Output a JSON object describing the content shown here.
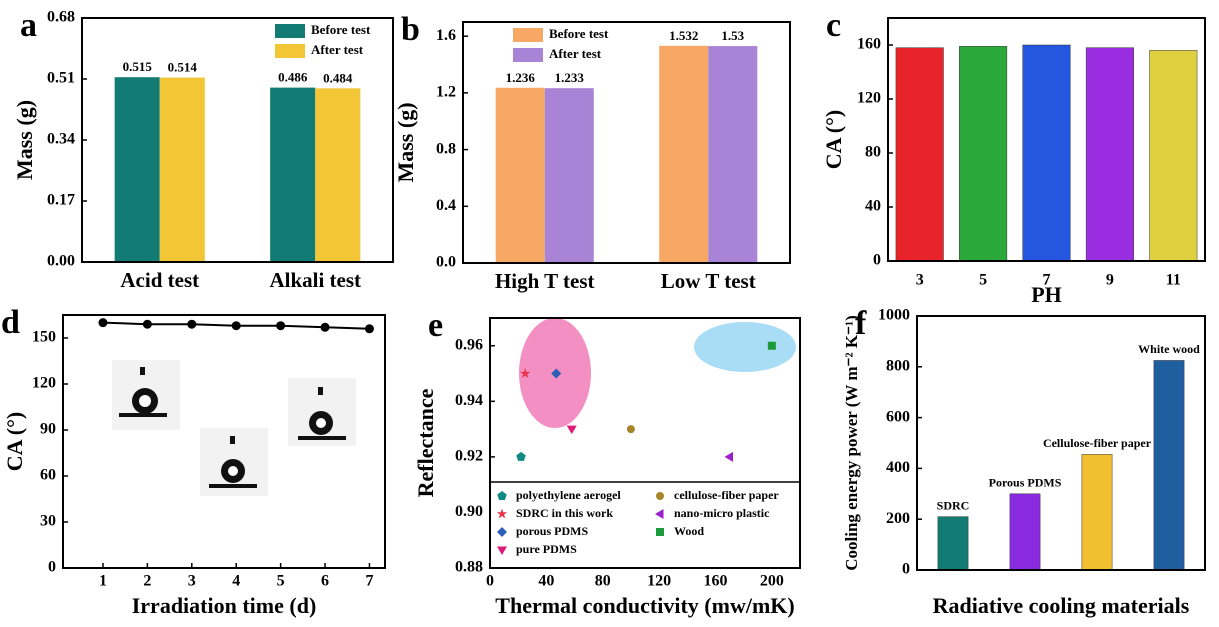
{
  "chart_data": [
    {
      "type": "bar",
      "label": "a",
      "ylabel": "Mass (g)",
      "categories": [
        "Acid test",
        "Alkali test"
      ],
      "series": [
        {
          "name": "Before test",
          "color": "#127c74",
          "values": [
            0.515,
            0.486
          ]
        },
        {
          "name": "After test",
          "color": "#f3c637",
          "values": [
            0.514,
            0.484
          ]
        }
      ],
      "ylim": [
        0,
        0.68
      ],
      "yticks": [
        {
          "value": 0,
          "label": "0.00"
        },
        0.17,
        0.34,
        0.51,
        0.68
      ],
      "legend": "upper right"
    },
    {
      "type": "bar",
      "label": "b",
      "ylabel": "Mass (g)",
      "categories": [
        "High T test",
        "Low T test"
      ],
      "series": [
        {
          "name": "Before test",
          "color": "#f7a865",
          "values": [
            1.236,
            1.532
          ]
        },
        {
          "name": "After test",
          "color": "#a883d6",
          "values": [
            1.233,
            1.53
          ]
        }
      ],
      "ylim": [
        0,
        1.7
      ],
      "yticks": [
        {
          "value": 0,
          "label": "0.0"
        },
        0.4,
        0.8,
        1.2,
        1.6
      ],
      "legend": "upper left"
    },
    {
      "type": "bar",
      "label": "c",
      "xlabel": "PH",
      "ylabel": "CA (°)",
      "categories": [
        "3",
        "5",
        "7",
        "9",
        "11"
      ],
      "values": [
        158,
        159,
        160,
        158,
        156
      ],
      "colors": [
        "#e8232a",
        "#2aa83a",
        "#2456e0",
        "#9a2de0",
        "#e0d040"
      ],
      "ylim": [
        0,
        180
      ],
      "yticks": [
        0,
        40,
        80,
        120,
        160
      ]
    },
    {
      "type": "line",
      "label": "d",
      "xlabel": "Irradiation time (d)",
      "ylabel": "CA (°)",
      "x": [
        1,
        2,
        3,
        4,
        5,
        6,
        7
      ],
      "values": [
        160,
        159,
        159,
        158,
        158,
        157,
        156
      ],
      "color": "#000000",
      "xlim": [
        0.1,
        7.35
      ],
      "xticks": [
        1,
        2,
        3,
        4,
        5,
        6,
        7
      ],
      "ylim": [
        0,
        165
      ],
      "yticks": [
        0,
        30,
        60,
        90,
        120,
        150
      ]
    },
    {
      "type": "scatter",
      "label": "e",
      "xlabel": "Thermal conductivity (mw/mK)",
      "ylabel": "Reflectance",
      "series": [
        {
          "name": "polyethylene aerogel",
          "color": "#128a84",
          "marker": "pentagon",
          "x": [
            22
          ],
          "values": [
            0.92
          ]
        },
        {
          "name": "SDRC in this work",
          "color": "#e8334a",
          "marker": "star",
          "x": [
            25
          ],
          "values": [
            0.95
          ]
        },
        {
          "name": "porous PDMS",
          "color": "#2c5fb8",
          "marker": "diamond",
          "x": [
            47
          ],
          "values": [
            0.95
          ]
        },
        {
          "name": "pure PDMS",
          "color": "#e01a78",
          "marker": "triangle-down",
          "x": [
            58
          ],
          "values": [
            0.93
          ]
        },
        {
          "name": "cellulose-fiber paper",
          "color": "#a8842a",
          "marker": "circle",
          "x": [
            100
          ],
          "values": [
            0.93
          ]
        },
        {
          "name": "nano-micro plastic",
          "color": "#9a22c8",
          "marker": "triangle-left",
          "x": [
            170
          ],
          "values": [
            0.92
          ]
        },
        {
          "name": "Wood",
          "color": "#1a9a3a",
          "marker": "square",
          "x": [
            200
          ],
          "values": [
            0.96
          ]
        }
      ],
      "xlim": [
        0,
        220
      ],
      "xticks": [
        0,
        40,
        80,
        120,
        160,
        200
      ],
      "ylim": [
        0.88,
        0.97
      ],
      "yticks": [
        0.88,
        {
          "value": 0.9,
          "label": "0.90"
        },
        0.92,
        0.94,
        0.96
      ],
      "legend": "lower center"
    },
    {
      "type": "bar",
      "label": "f",
      "xlabel": "Radiative cooling materials",
      "ylabel": "Cooling energy power (W m⁻² K⁻¹)",
      "categories": [
        "SDRC",
        "Porous PDMS",
        "Cellulose-fiber paper",
        "White wood"
      ],
      "category_labels": "above",
      "values": [
        210,
        300,
        455,
        825
      ],
      "colors": [
        "#127c74",
        "#8a2be2",
        "#f0c030",
        "#1f5fa0"
      ],
      "ylim": [
        0,
        1000
      ],
      "yticks": [
        0,
        200,
        400,
        600,
        800,
        1000
      ]
    }
  ]
}
